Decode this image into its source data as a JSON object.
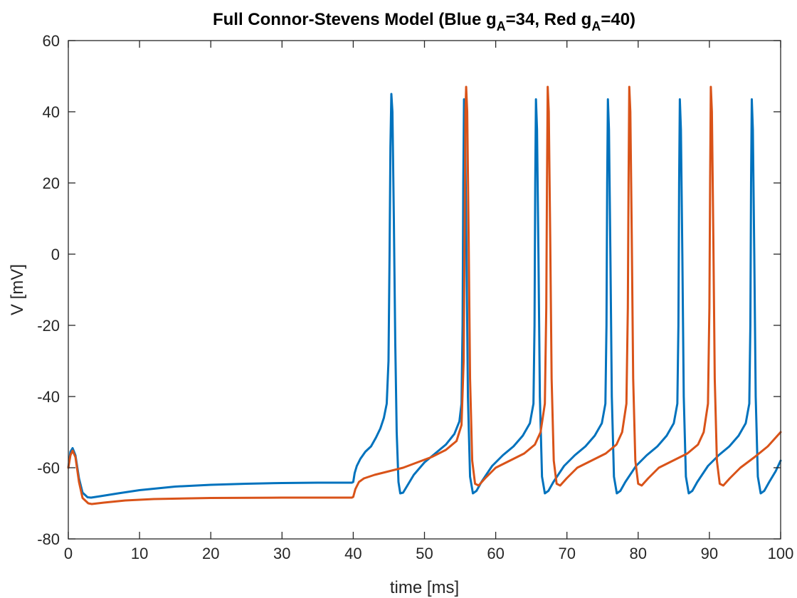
{
  "chart_data": {
    "type": "line",
    "title": {
      "main": "Full Connor-Stevens Model (Blue g",
      "sub1": "A",
      "mid": "=34, Red g",
      "sub2": "A",
      "end": "=40)"
    },
    "xlabel": "time [ms]",
    "ylabel": "V [mV]",
    "xlim": [
      0,
      100
    ],
    "ylim": [
      -80,
      60
    ],
    "xticks": [
      0,
      10,
      20,
      30,
      40,
      50,
      60,
      70,
      80,
      90,
      100
    ],
    "yticks": [
      -80,
      -60,
      -40,
      -20,
      0,
      20,
      40,
      60
    ],
    "grid": false,
    "series": [
      {
        "color": "#0072BD",
        "values": [
          [
            0,
            -60
          ],
          [
            0.3,
            -55.5
          ],
          [
            0.6,
            -54.5
          ],
          [
            1.0,
            -56.5
          ],
          [
            1.5,
            -63
          ],
          [
            2.0,
            -67
          ],
          [
            2.7,
            -68.3
          ],
          [
            3.2,
            -68.4
          ],
          [
            4.5,
            -68.0
          ],
          [
            7,
            -67.2
          ],
          [
            10,
            -66.3
          ],
          [
            15,
            -65.3
          ],
          [
            20,
            -64.8
          ],
          [
            25,
            -64.5
          ],
          [
            30,
            -64.3
          ],
          [
            35,
            -64.2
          ],
          [
            39.8,
            -64.2
          ],
          [
            40,
            -64.0
          ],
          [
            40.2,
            -61.5
          ],
          [
            40.5,
            -59.5
          ],
          [
            41,
            -57.5
          ],
          [
            41.7,
            -55.5
          ],
          [
            42.5,
            -54.0
          ],
          [
            43.2,
            -51.5
          ],
          [
            43.8,
            -49.0
          ],
          [
            44.3,
            -46.0
          ],
          [
            44.7,
            -42.0
          ],
          [
            44.95,
            -30
          ],
          [
            45.1,
            0
          ],
          [
            45.22,
            30
          ],
          [
            45.35,
            45.0
          ],
          [
            45.5,
            40.0
          ],
          [
            45.7,
            10
          ],
          [
            45.9,
            -25
          ],
          [
            46.1,
            -50
          ],
          [
            46.35,
            -64.0
          ],
          [
            46.6,
            -67.2
          ],
          [
            47.0,
            -67.0
          ],
          [
            47.6,
            -65.0
          ],
          [
            48.5,
            -62.0
          ],
          [
            50,
            -58.5
          ],
          [
            51.5,
            -56.0
          ],
          [
            53,
            -53.5
          ],
          [
            54.2,
            -50.5
          ],
          [
            54.9,
            -47.0
          ],
          [
            55.2,
            -42.0
          ],
          [
            55.35,
            -20
          ],
          [
            55.45,
            20
          ],
          [
            55.55,
            43.5
          ],
          [
            55.7,
            35
          ],
          [
            55.9,
            0
          ],
          [
            56.1,
            -40
          ],
          [
            56.4,
            -62.5
          ],
          [
            56.8,
            -67.2
          ],
          [
            57.3,
            -66.5
          ],
          [
            58.0,
            -64.0
          ],
          [
            59.5,
            -59.5
          ],
          [
            61,
            -56.5
          ],
          [
            62.5,
            -54.0
          ],
          [
            63.8,
            -51.0
          ],
          [
            64.8,
            -47.5
          ],
          [
            65.3,
            -42.0
          ],
          [
            65.45,
            -20
          ],
          [
            65.55,
            20
          ],
          [
            65.65,
            43.5
          ],
          [
            65.8,
            35
          ],
          [
            66.0,
            0
          ],
          [
            66.2,
            -40
          ],
          [
            66.5,
            -62.5
          ],
          [
            66.9,
            -67.2
          ],
          [
            67.4,
            -66.5
          ],
          [
            68.1,
            -64.0
          ],
          [
            69.6,
            -59.5
          ],
          [
            71.1,
            -56.5
          ],
          [
            72.6,
            -54.0
          ],
          [
            73.9,
            -51.0
          ],
          [
            74.9,
            -47.5
          ],
          [
            75.4,
            -42.0
          ],
          [
            75.55,
            -20
          ],
          [
            75.65,
            20
          ],
          [
            75.75,
            43.5
          ],
          [
            75.9,
            35
          ],
          [
            76.1,
            0
          ],
          [
            76.3,
            -40
          ],
          [
            76.6,
            -62.5
          ],
          [
            77.0,
            -67.2
          ],
          [
            77.5,
            -66.5
          ],
          [
            78.2,
            -64.0
          ],
          [
            79.7,
            -59.5
          ],
          [
            81.2,
            -56.5
          ],
          [
            82.7,
            -54.0
          ],
          [
            84.0,
            -51.0
          ],
          [
            85.0,
            -47.5
          ],
          [
            85.5,
            -42.0
          ],
          [
            85.65,
            -20
          ],
          [
            85.75,
            20
          ],
          [
            85.85,
            43.5
          ],
          [
            86.0,
            35
          ],
          [
            86.2,
            0
          ],
          [
            86.4,
            -40
          ],
          [
            86.7,
            -62.5
          ],
          [
            87.1,
            -67.2
          ],
          [
            87.6,
            -66.5
          ],
          [
            88.3,
            -64.0
          ],
          [
            89.8,
            -59.5
          ],
          [
            91.3,
            -56.5
          ],
          [
            92.8,
            -54.0
          ],
          [
            94.1,
            -51.0
          ],
          [
            95.1,
            -47.5
          ],
          [
            95.6,
            -42.0
          ],
          [
            95.75,
            -20
          ],
          [
            95.85,
            20
          ],
          [
            95.95,
            43.5
          ],
          [
            96.1,
            35
          ],
          [
            96.3,
            0
          ],
          [
            96.5,
            -40
          ],
          [
            96.8,
            -62.5
          ],
          [
            97.2,
            -67.2
          ],
          [
            97.7,
            -66.5
          ],
          [
            98.4,
            -64.0
          ],
          [
            99.3,
            -61.0
          ],
          [
            100,
            -58.0
          ]
        ]
      },
      {
        "color": "#D95319",
        "values": [
          [
            0,
            -60
          ],
          [
            0.3,
            -56.5
          ],
          [
            0.6,
            -55.2
          ],
          [
            1.0,
            -57.0
          ],
          [
            1.5,
            -64
          ],
          [
            2.0,
            -68.5
          ],
          [
            2.8,
            -70.0
          ],
          [
            3.3,
            -70.2
          ],
          [
            5,
            -69.8
          ],
          [
            8,
            -69.2
          ],
          [
            12,
            -68.8
          ],
          [
            20,
            -68.5
          ],
          [
            30,
            -68.4
          ],
          [
            39.8,
            -68.4
          ],
          [
            40,
            -68.2
          ],
          [
            40.3,
            -66.0
          ],
          [
            40.8,
            -64.0
          ],
          [
            41.5,
            -63.0
          ],
          [
            43,
            -62.0
          ],
          [
            45,
            -61.0
          ],
          [
            47,
            -60.0
          ],
          [
            49,
            -58.5
          ],
          [
            51,
            -57.0
          ],
          [
            53,
            -55.0
          ],
          [
            54.5,
            -52.5
          ],
          [
            55.2,
            -48.0
          ],
          [
            55.5,
            -30
          ],
          [
            55.65,
            10
          ],
          [
            55.75,
            40
          ],
          [
            55.85,
            47.0
          ],
          [
            56.0,
            40
          ],
          [
            56.2,
            5
          ],
          [
            56.4,
            -35
          ],
          [
            56.7,
            -58
          ],
          [
            57.1,
            -64.5
          ],
          [
            57.6,
            -65.0
          ],
          [
            58.5,
            -63.0
          ],
          [
            60,
            -60.0
          ],
          [
            62,
            -58.0
          ],
          [
            64,
            -56.0
          ],
          [
            65.5,
            -53.5
          ],
          [
            66.3,
            -50.0
          ],
          [
            66.9,
            -42.0
          ],
          [
            67.1,
            -15
          ],
          [
            67.2,
            20
          ],
          [
            67.3,
            47.0
          ],
          [
            67.45,
            40
          ],
          [
            67.65,
            5
          ],
          [
            67.85,
            -35
          ],
          [
            68.15,
            -58
          ],
          [
            68.55,
            -64.5
          ],
          [
            69.05,
            -65.0
          ],
          [
            69.95,
            -63.0
          ],
          [
            71.45,
            -60.0
          ],
          [
            73.45,
            -58.0
          ],
          [
            75.45,
            -56.0
          ],
          [
            76.95,
            -53.5
          ],
          [
            77.75,
            -50.0
          ],
          [
            78.35,
            -42.0
          ],
          [
            78.55,
            -15
          ],
          [
            78.65,
            20
          ],
          [
            78.75,
            47.0
          ],
          [
            78.9,
            40
          ],
          [
            79.1,
            5
          ],
          [
            79.3,
            -35
          ],
          [
            79.6,
            -58
          ],
          [
            80.0,
            -64.5
          ],
          [
            80.5,
            -65.0
          ],
          [
            81.4,
            -63.0
          ],
          [
            82.9,
            -60.0
          ],
          [
            84.9,
            -58.0
          ],
          [
            86.9,
            -56.0
          ],
          [
            88.4,
            -53.5
          ],
          [
            89.2,
            -50.0
          ],
          [
            89.8,
            -42.0
          ],
          [
            90.0,
            -15
          ],
          [
            90.1,
            20
          ],
          [
            90.2,
            47.0
          ],
          [
            90.35,
            40
          ],
          [
            90.55,
            5
          ],
          [
            90.75,
            -35
          ],
          [
            91.05,
            -58
          ],
          [
            91.45,
            -64.5
          ],
          [
            91.95,
            -65.0
          ],
          [
            92.85,
            -63.0
          ],
          [
            94.35,
            -60.0
          ],
          [
            96.35,
            -57.0
          ],
          [
            98.2,
            -54.0
          ],
          [
            100,
            -50.0
          ]
        ]
      }
    ]
  }
}
